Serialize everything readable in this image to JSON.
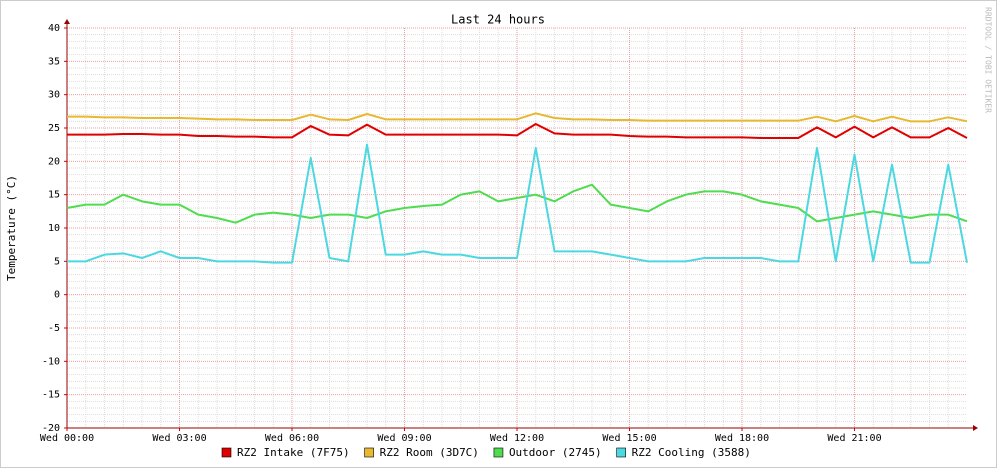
{
  "chart_data": {
    "type": "line",
    "title": "Last 24 hours",
    "y_label": "Temperature (°C)",
    "watermark": "RRDTOOL / TOBI OETIKER",
    "x": [
      0,
      0.5,
      1,
      1.5,
      2,
      2.5,
      3,
      3.5,
      4,
      4.5,
      5,
      5.5,
      6,
      6.5,
      7,
      7.5,
      8,
      8.5,
      9,
      9.5,
      10,
      10.5,
      11,
      11.5,
      12,
      12.5,
      13,
      13.5,
      14,
      14.5,
      15,
      15.5,
      16,
      16.5,
      17,
      17.5,
      18,
      18.5,
      19,
      19.5,
      20,
      20.5,
      21,
      21.5,
      22,
      22.5,
      23,
      23.5,
      24
    ],
    "xlim": [
      0,
      24
    ],
    "xticks": [
      {
        "value": 0,
        "label": "Wed 00:00"
      },
      {
        "value": 3,
        "label": "Wed 03:00"
      },
      {
        "value": 6,
        "label": "Wed 06:00"
      },
      {
        "value": 9,
        "label": "Wed 09:00"
      },
      {
        "value": 12,
        "label": "Wed 12:00"
      },
      {
        "value": 15,
        "label": "Wed 15:00"
      },
      {
        "value": 18,
        "label": "Wed 18:00"
      },
      {
        "value": 21,
        "label": "Wed 21:00"
      }
    ],
    "ylim": [
      -20,
      40
    ],
    "yticks": [
      -20,
      -15,
      -10,
      -5,
      0,
      5,
      10,
      15,
      20,
      25,
      30,
      35,
      40
    ],
    "grid": true,
    "series": [
      {
        "name": "RZ2 Intake (7F75)",
        "color": "#e00000",
        "values": [
          24,
          24,
          24,
          24.1,
          24.1,
          24,
          24,
          23.8,
          23.8,
          23.7,
          23.7,
          23.6,
          23.6,
          25.3,
          24,
          23.9,
          25.5,
          24,
          24,
          24,
          24,
          24,
          24,
          24,
          23.9,
          25.6,
          24.2,
          24,
          24,
          24,
          23.8,
          23.7,
          23.7,
          23.6,
          23.6,
          23.6,
          23.6,
          23.5,
          23.5,
          23.5,
          25.1,
          23.6,
          25.2,
          23.6,
          25.1,
          23.6,
          23.6,
          25,
          23.5
        ]
      },
      {
        "name": "RZ2 Room (3D7C)",
        "color": "#e8b830",
        "values": [
          26.7,
          26.7,
          26.6,
          26.6,
          26.5,
          26.5,
          26.5,
          26.4,
          26.3,
          26.3,
          26.2,
          26.2,
          26.2,
          27,
          26.3,
          26.2,
          27.1,
          26.3,
          26.3,
          26.3,
          26.3,
          26.3,
          26.3,
          26.3,
          26.3,
          27.2,
          26.5,
          26.3,
          26.3,
          26.2,
          26.2,
          26.1,
          26.1,
          26.1,
          26.1,
          26.1,
          26.1,
          26.1,
          26.1,
          26.1,
          26.7,
          26,
          26.8,
          26,
          26.7,
          26,
          26,
          26.6,
          26
        ]
      },
      {
        "name": "Outdoor (2745)",
        "color": "#50dc50",
        "values": [
          13,
          13.5,
          13.5,
          15,
          14,
          13.5,
          13.5,
          12,
          11.5,
          10.8,
          12,
          12.3,
          12,
          11.5,
          12,
          12,
          11.5,
          12.5,
          13,
          13.3,
          13.5,
          15,
          15.5,
          14,
          14.5,
          15,
          14,
          15.5,
          16.5,
          13.5,
          13,
          12.5,
          14,
          15,
          15.5,
          15.5,
          15,
          14,
          13.5,
          13,
          11,
          11.5,
          12,
          12.5,
          12,
          11.5,
          12,
          12,
          11
        ]
      },
      {
        "name": "RZ2 Cooling (3588)",
        "color": "#4cd8e0",
        "values": [
          5,
          5,
          6,
          6.2,
          5.5,
          6.5,
          5.5,
          5.5,
          5,
          5,
          5,
          4.8,
          4.8,
          20.5,
          5.5,
          5,
          22.5,
          6,
          6,
          6.5,
          6,
          6,
          5.5,
          5.5,
          5.5,
          22,
          6.5,
          6.5,
          6.5,
          6,
          5.5,
          5,
          5,
          5,
          5.5,
          5.5,
          5.5,
          5.5,
          5,
          5,
          22,
          5,
          21,
          5,
          19.5,
          4.8,
          4.8,
          19.5,
          4.8
        ]
      }
    ]
  }
}
